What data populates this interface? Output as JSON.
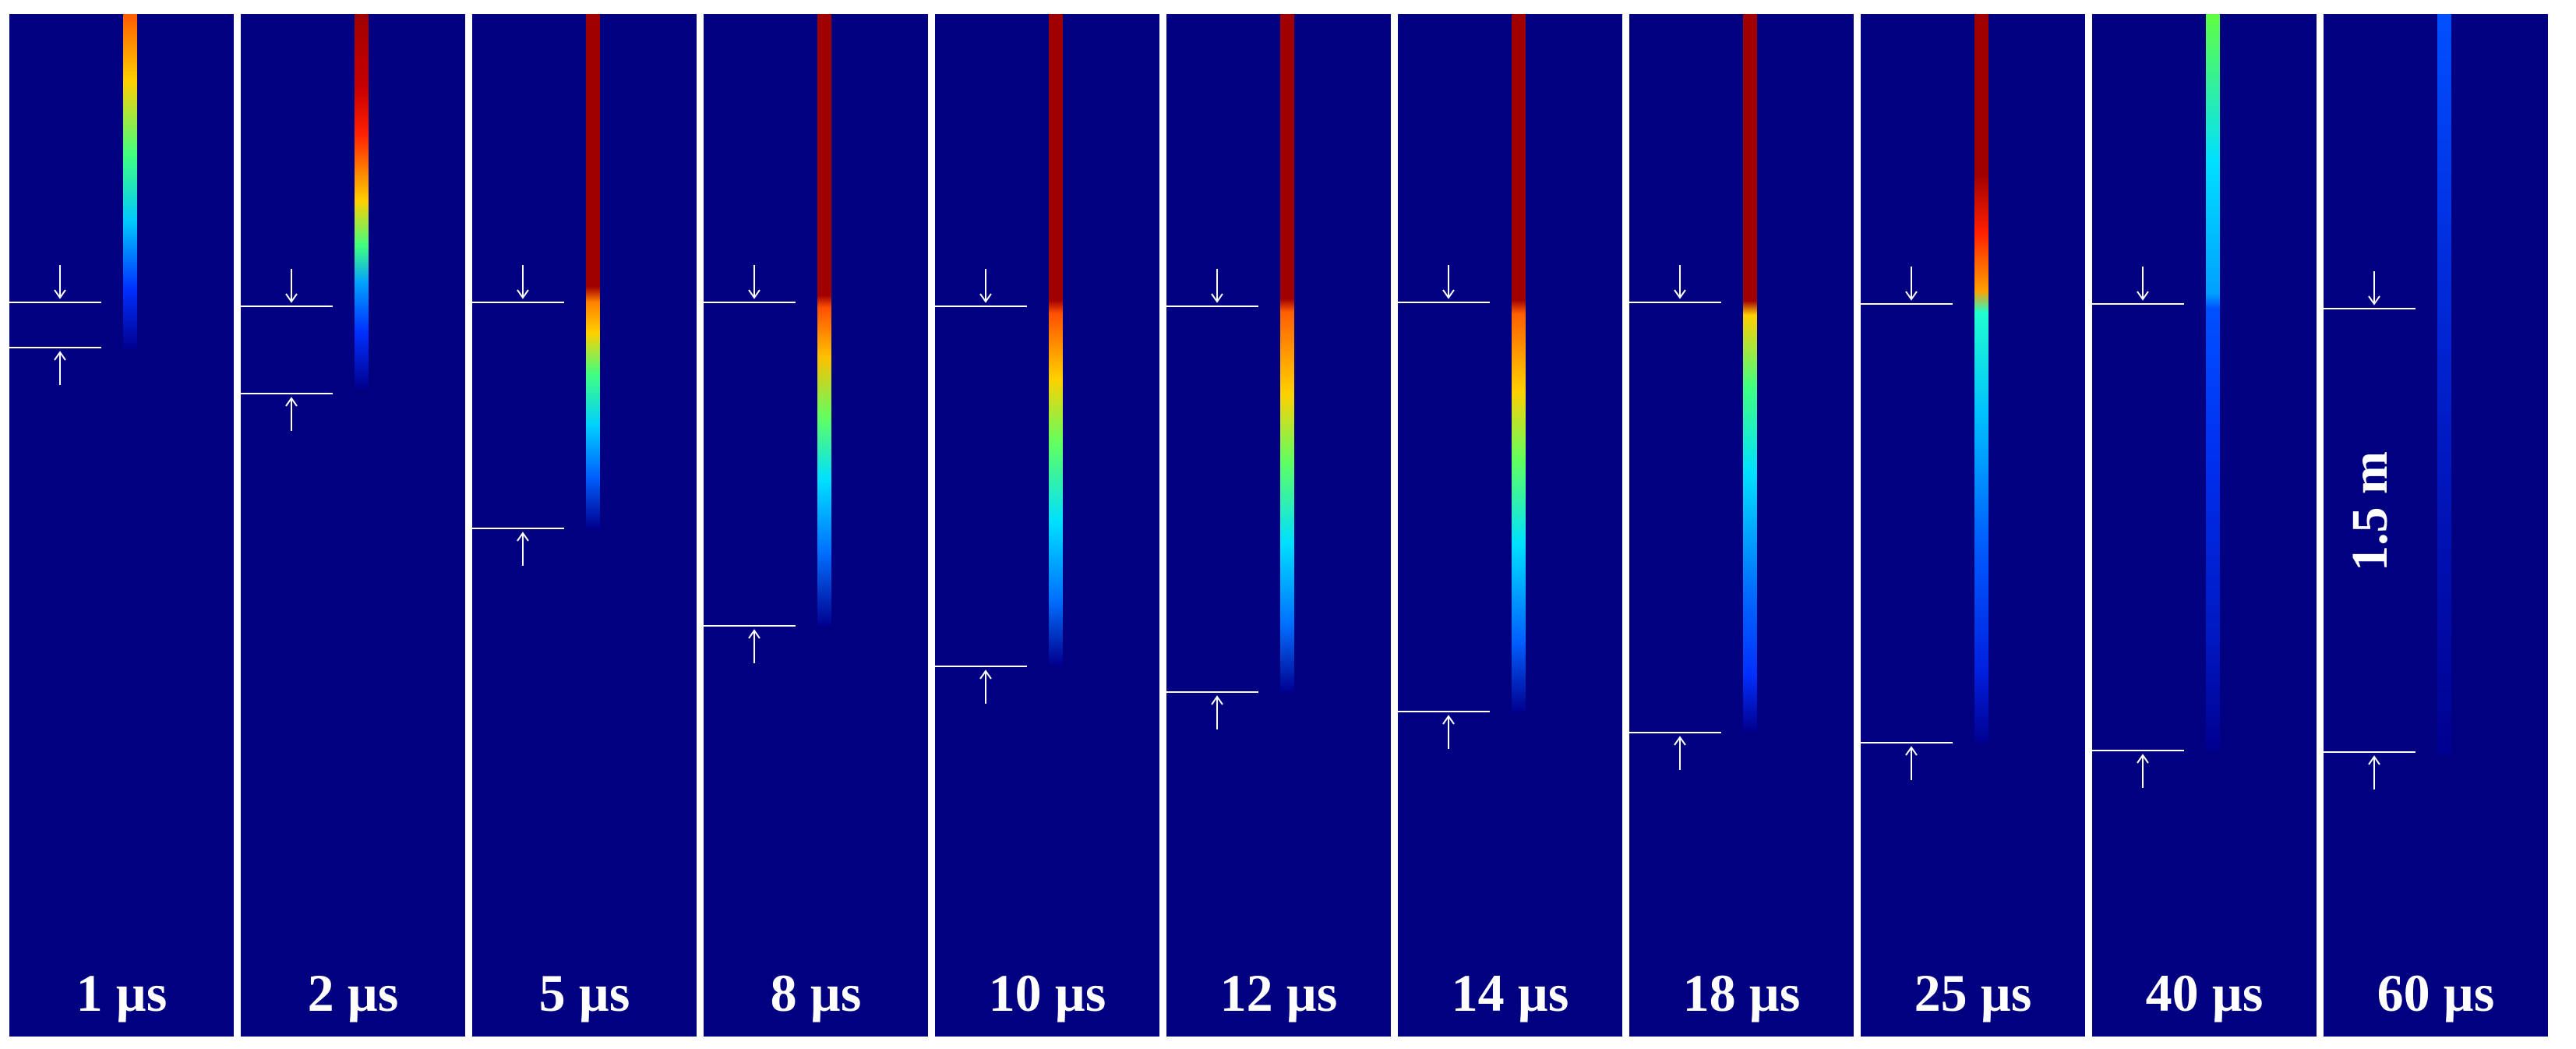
{
  "panels": [
    {
      "time": "1 µs"
    },
    {
      "time": "2 µs"
    },
    {
      "time": "5 µs"
    },
    {
      "time": "8 µs"
    },
    {
      "time": "10 µs"
    },
    {
      "time": "12 µs"
    },
    {
      "time": "14 µs"
    },
    {
      "time": "18 µs"
    },
    {
      "time": "25 µs"
    },
    {
      "time": "40 µs"
    },
    {
      "time": "60 µs"
    }
  ],
  "scale_label": "1.5 m",
  "colors": {
    "background": "#000080",
    "marker": "#ffffff",
    "colormap": "jet"
  }
}
